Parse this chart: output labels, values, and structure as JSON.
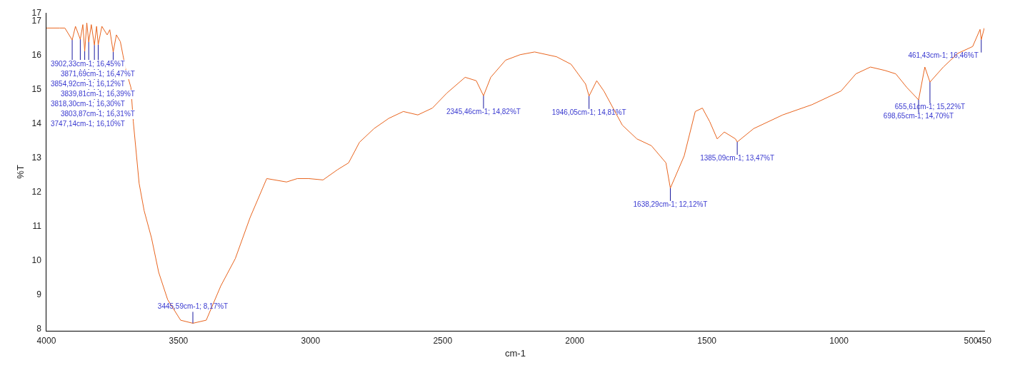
{
  "chart_data": {
    "type": "line",
    "xlabel": "cm-1",
    "ylabel": "%T",
    "x": [
      4000,
      3950,
      3930,
      3902.33,
      3890,
      3871.69,
      3862,
      3854.92,
      3847,
      3839.81,
      3830,
      3818.3,
      3810,
      3803.87,
      3790,
      3770,
      3760,
      3747.14,
      3735,
      3720,
      3710,
      3700,
      3680,
      3671,
      3649,
      3630,
      3602,
      3575,
      3541,
      3492,
      3445.59,
      3395,
      3340,
      3285,
      3229,
      3166,
      3091,
      3050,
      3008,
      2953,
      2898,
      2856,
      2815,
      2760,
      2704,
      2649,
      2594,
      2539,
      2484,
      2415,
      2373,
      2345.46,
      2318,
      2262,
      2207,
      2152,
      2069,
      2014,
      1959,
      1946.05,
      1917,
      1890,
      1820,
      1765,
      1710,
      1655,
      1638.29,
      1586,
      1544,
      1517,
      1489,
      1461,
      1434,
      1392,
      1385.09,
      1323,
      1213,
      1102,
      992,
      936,
      881,
      826,
      785,
      743,
      698.65,
      675,
      655.61,
      605,
      550,
      494,
      466,
      461.43,
      450
    ],
    "values": [
      16.8,
      16.8,
      16.8,
      16.45,
      16.85,
      16.47,
      16.9,
      16.12,
      16.95,
      16.39,
      16.9,
      16.3,
      16.85,
      16.31,
      16.85,
      16.6,
      16.75,
      16.1,
      16.6,
      16.4,
      16.0,
      15.6,
      15.06,
      14.06,
      12.26,
      11.46,
      10.66,
      9.66,
      8.86,
      8.26,
      8.17,
      8.26,
      9.26,
      10.06,
      11.26,
      12.4,
      12.3,
      12.4,
      12.4,
      12.36,
      12.66,
      12.86,
      13.46,
      13.86,
      14.16,
      14.36,
      14.26,
      14.46,
      14.9,
      15.36,
      15.26,
      14.82,
      15.36,
      15.86,
      16.02,
      16.1,
      15.96,
      15.74,
      15.16,
      14.81,
      15.26,
      14.96,
      13.96,
      13.56,
      13.36,
      12.86,
      12.12,
      13.06,
      14.36,
      14.46,
      14.06,
      13.56,
      13.76,
      13.56,
      13.47,
      13.86,
      14.26,
      14.56,
      14.96,
      15.46,
      15.66,
      15.56,
      15.46,
      15.06,
      14.7,
      15.66,
      15.22,
      15.66,
      16.06,
      16.26,
      16.76,
      16.46,
      16.8
    ],
    "color": "#e8641e",
    "xlim": [
      4000,
      450
    ],
    "xticks": [
      4000,
      3500,
      3000,
      2500,
      2000,
      1500,
      1000,
      500,
      450
    ],
    "ylim": [
      7.95,
      17.24
    ],
    "yticks": [
      8,
      9,
      10,
      11,
      12,
      13,
      14,
      15,
      16,
      17,
      {
        "value": 17.24,
        "label": "17"
      }
    ],
    "grid": false,
    "legend": false,
    "marker": "none",
    "line_style": "solid",
    "annotations": [
      {
        "text": "3902,33cm-1; 16,45%T",
        "x": 3902.33,
        "y": 16.45
      },
      {
        "text": "3871,69cm-1; 16,47%T",
        "x": 3871.69,
        "y": 16.47
      },
      {
        "text": "3854,92cm-1; 16,12%T",
        "x": 3854.92,
        "y": 16.12
      },
      {
        "text": "3839,81cm-1; 16,39%T",
        "x": 3839.81,
        "y": 16.39
      },
      {
        "text": "3818,30cm-1; 16,30%T",
        "x": 3818.3,
        "y": 16.3
      },
      {
        "text": "3803,87cm-1; 16,31%T",
        "x": 3803.87,
        "y": 16.31
      },
      {
        "text": "3747,14cm-1; 16,10%T",
        "x": 3747.14,
        "y": 16.1
      },
      {
        "text": "3445,59cm-1; 8,17%T",
        "x": 3445.59,
        "y": 8.17
      },
      {
        "text": "2345,46cm-1; 14,82%T",
        "x": 2345.46,
        "y": 14.82
      },
      {
        "text": "1946,05cm-1; 14,81%T",
        "x": 1946.05,
        "y": 14.81
      },
      {
        "text": "1638,29cm-1; 12,12%T",
        "x": 1638.29,
        "y": 12.12
      },
      {
        "text": "1385,09cm-1; 13,47%T",
        "x": 1385.09,
        "y": 13.47
      },
      {
        "text": "698,65cm-1; 14,70%T",
        "x": 698.65,
        "y": 14.7
      },
      {
        "text": "655,61cm-1; 15,22%T",
        "x": 655.61,
        "y": 15.22
      },
      {
        "text": "461,43cm-1; 16,46%T",
        "x": 461.43,
        "y": 16.46
      }
    ]
  }
}
